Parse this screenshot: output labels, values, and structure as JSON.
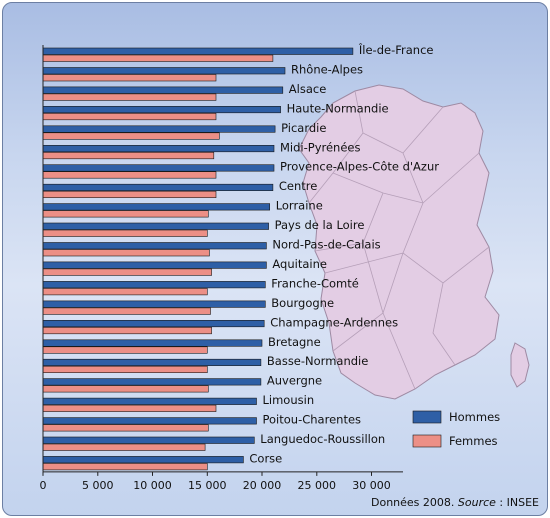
{
  "chart_data": {
    "type": "bar",
    "orientation": "horizontal",
    "categories": [
      "Île-de-France",
      "Rhône-Alpes",
      "Alsace",
      "Haute-Normandie",
      "Picardie",
      "Midi-Pyrénées",
      "Provence-Alpes-Côte d'Azur",
      "Centre",
      "Lorraine",
      "Pays de la Loire",
      "Nord-Pas-de-Calais",
      "Aquitaine",
      "Franche-Comté",
      "Bourgogne",
      "Champagne-Ardennes",
      "Bretagne",
      "Basse-Normandie",
      "Auvergne",
      "Limousin",
      "Poitou-Charentes",
      "Languedoc-Roussillon",
      "Corse"
    ],
    "series": [
      {
        "name": "Hommes",
        "color": "#2e5fa6",
        "values": [
          28300,
          22100,
          21900,
          21700,
          21200,
          21100,
          21100,
          21000,
          20700,
          20600,
          20400,
          20400,
          20300,
          20300,
          20200,
          20000,
          19900,
          19900,
          19500,
          19500,
          19300,
          18300
        ]
      },
      {
        "name": "Femmes",
        "color": "#ec8f86",
        "values": [
          21000,
          15800,
          15800,
          15800,
          16100,
          15600,
          15800,
          15800,
          15100,
          15000,
          15200,
          15400,
          15000,
          15300,
          15400,
          15000,
          15000,
          15100,
          15800,
          15100,
          14800,
          15000
        ]
      }
    ],
    "x_ticks": [
      "0",
      "5 000",
      "10 000",
      "15 000",
      "20 000",
      "25 000",
      "30 000"
    ],
    "xlim": [
      0,
      32500
    ],
    "legend_position": "bottom-right",
    "grid": false
  },
  "source": {
    "prefix": "Données 2008. ",
    "word": "Source",
    "suffix": " : INSEE"
  },
  "colors": {
    "map_fill": "#e3cde4",
    "map_border": "#9e8aa3",
    "background_top": "#a9bde3",
    "background_bottom": "#dbe4f5"
  }
}
